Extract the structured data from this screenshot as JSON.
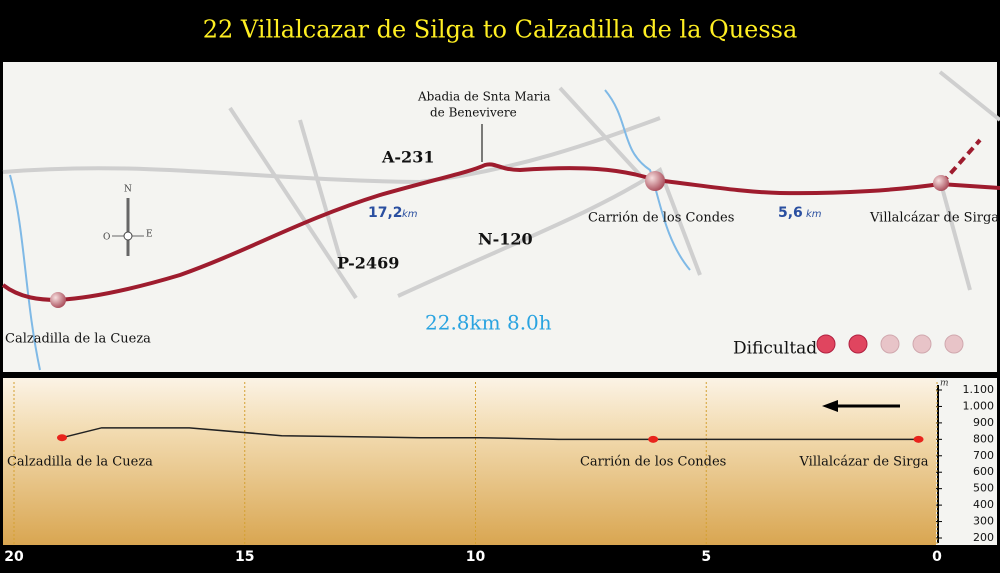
{
  "header": {
    "title": "22 Villalcazar de Silga to Calzadilla de la Quessa"
  },
  "map": {
    "roads": [
      "A-231",
      "N-120",
      "P-2469"
    ],
    "landmark": {
      "line1": "Abadia de Snta Maria",
      "line2": "de Benevivere"
    },
    "towns": [
      "Calzadilla de la Cueza",
      "Carrión de los Condes",
      "Villalcázar de Sirga"
    ],
    "distances": [
      {
        "value": "17,2",
        "unit": "km"
      },
      {
        "value": "5,6",
        "unit": "km"
      }
    ],
    "compass": {
      "north": "N",
      "west": "O",
      "east": "E"
    },
    "summary": "22.8km 8.0h",
    "difficulty": {
      "label": "Dificultad",
      "level": 2,
      "max": 5
    }
  },
  "profile": {
    "y_unit": "m",
    "xlim": [
      0,
      20
    ],
    "ylim": [
      200,
      1100
    ],
    "xticks": [
      0,
      5,
      10,
      15,
      20
    ],
    "yticks": [
      {
        "value": 1100,
        "label": "1.100"
      },
      {
        "value": 1000,
        "label": "1.000"
      },
      900,
      800,
      700,
      600,
      500,
      400,
      300,
      200
    ],
    "distance": [
      18.96,
      18.1,
      16.2,
      14.2,
      11.2,
      9.9,
      8.2,
      6.15,
      3.0,
      0.4
    ],
    "elevation": [
      810,
      870,
      870,
      822,
      810,
      810,
      800,
      800,
      800,
      800
    ],
    "places": [
      {
        "name": "Calzadilla de la Cueza",
        "distance": 18.96,
        "elevation": 810
      },
      {
        "name": "Carrión de los Condes",
        "distance": 6.15,
        "elevation": 800
      },
      {
        "name": "Villalcázar de Sirga",
        "distance": 0.4,
        "elevation": 800
      }
    ]
  }
}
